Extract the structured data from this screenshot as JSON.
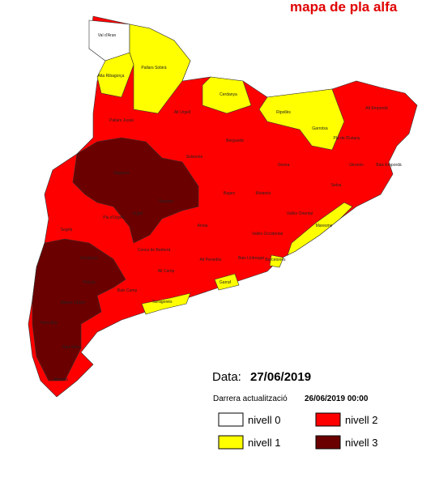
{
  "header": {
    "title": "mapa de pla alfa"
  },
  "info": {
    "date_label": "Data:",
    "date": "27/06/2019",
    "update_label": "Darrera actualització",
    "update": "26/06/2019 00:00"
  },
  "legend": [
    {
      "label": "nivell 0",
      "color": "#ffffff"
    },
    {
      "label": "nivell 1",
      "color": "#ffff00"
    },
    {
      "label": "nivell 2",
      "color": "#ff0000"
    },
    {
      "label": "nivell 3",
      "color": "#6b0000"
    }
  ],
  "regions": [
    {
      "name": "Val d'Aran",
      "level": 0
    },
    {
      "name": "Pallars Sobirà",
      "level": 1
    },
    {
      "name": "Alta Ribagorça",
      "level": 1
    },
    {
      "name": "Cerdanya",
      "level": 1
    },
    {
      "name": "Ripollès",
      "level": 1
    },
    {
      "name": "Garrotxa",
      "level": 1
    },
    {
      "name": "Maresme",
      "level": 1
    },
    {
      "name": "Barcelonès",
      "level": 1
    },
    {
      "name": "Garraf",
      "level": 1
    },
    {
      "name": "Tarragonès",
      "level": 1
    },
    {
      "name": "Pallars Jussà",
      "level": 2
    },
    {
      "name": "Alt Urgell",
      "level": 2
    },
    {
      "name": "Berguedà",
      "level": 2
    },
    {
      "name": "Solsonès",
      "level": 2
    },
    {
      "name": "Osona",
      "level": 2
    },
    {
      "name": "Alt Empordà",
      "level": 2
    },
    {
      "name": "Pla de l'Estany",
      "level": 2
    },
    {
      "name": "Gironès",
      "level": 2
    },
    {
      "name": "Baix Empordà",
      "level": 2
    },
    {
      "name": "Selva",
      "level": 2
    },
    {
      "name": "Bages",
      "level": 2
    },
    {
      "name": "Moianès",
      "level": 2
    },
    {
      "name": "Vallès Oriental",
      "level": 2
    },
    {
      "name": "Vallès Occidental",
      "level": 2
    },
    {
      "name": "Anoia",
      "level": 2
    },
    {
      "name": "Baix Llobregat",
      "level": 2
    },
    {
      "name": "Alt Penedès",
      "level": 2
    },
    {
      "name": "Conca de Barberà",
      "level": 2
    },
    {
      "name": "Alt Camp",
      "level": 2
    },
    {
      "name": "Baix Camp",
      "level": 2
    },
    {
      "name": "Pla d'Urgell",
      "level": 2
    },
    {
      "name": "Segarra",
      "level": 2
    },
    {
      "name": "Urgell",
      "level": 2
    },
    {
      "name": "Segrià",
      "level": 2
    },
    {
      "name": "Noguera",
      "level": 3
    },
    {
      "name": "Garrigues",
      "level": 3
    },
    {
      "name": "Priorat",
      "level": 3
    },
    {
      "name": "Ribera d'Ebre",
      "level": 3
    },
    {
      "name": "Terra Alta",
      "level": 3
    },
    {
      "name": "Baix Ebre",
      "level": 3
    },
    {
      "name": "Montsià",
      "level": 2
    }
  ]
}
